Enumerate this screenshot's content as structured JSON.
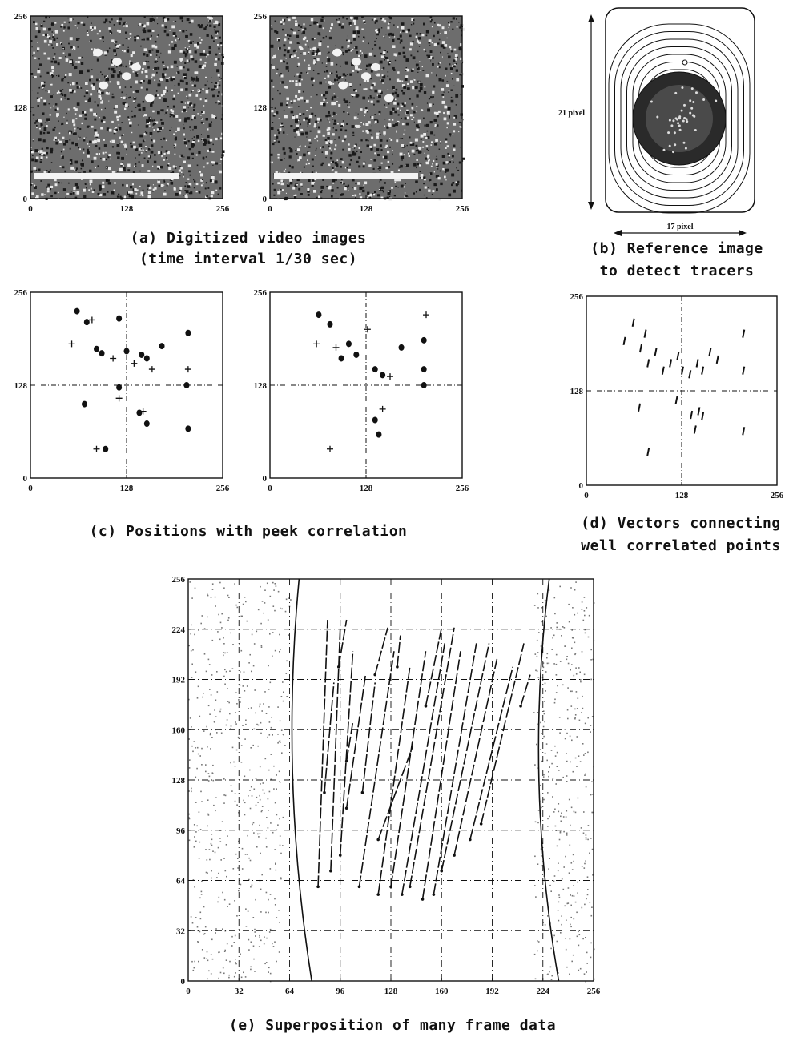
{
  "panel_a": {
    "caption_line1": "(a) Digitized video images",
    "caption_line2": "(time interval 1/30 sec)",
    "ticks": [
      "0",
      "128",
      "256"
    ]
  },
  "panel_b": {
    "caption_line1": "(b) Reference image",
    "caption_line2": "to detect tracers",
    "height_label": "21 pixel",
    "width_label": "17 pixel"
  },
  "panel_c": {
    "caption": "(c) Positions with peek correlation",
    "ticks": [
      "0",
      "128",
      "256"
    ]
  },
  "panel_d": {
    "caption_line1": "(d) Vectors connecting",
    "caption_line2": "well correlated points",
    "ticks": [
      "0",
      "128",
      "256"
    ]
  },
  "panel_e": {
    "caption": "(e) Superposition of many frame data",
    "x_ticks": [
      "0",
      "32",
      "64",
      "96",
      "128",
      "160",
      "192",
      "224",
      "256"
    ],
    "y_ticks": [
      "0",
      "32",
      "64",
      "96",
      "128",
      "160",
      "192",
      "224",
      "256"
    ]
  },
  "chart_data": [
    {
      "type": "scatter",
      "name_shown": "",
      "xlim": [
        0,
        256
      ],
      "ylim": [
        0,
        256
      ],
      "points_frame1": [
        [
          55,
          185
        ],
        [
          62,
          230
        ],
        [
          75,
          215
        ],
        [
          82,
          218
        ],
        [
          88,
          178
        ],
        [
          95,
          172
        ],
        [
          110,
          165
        ],
        [
          118,
          220
        ],
        [
          128,
          175
        ],
        [
          138,
          158
        ],
        [
          148,
          170
        ],
        [
          155,
          165
        ],
        [
          162,
          150
        ],
        [
          175,
          182
        ],
        [
          210,
          200
        ],
        [
          210,
          150
        ],
        [
          208,
          128
        ],
        [
          210,
          68
        ],
        [
          150,
          92
        ],
        [
          155,
          75
        ],
        [
          145,
          90
        ],
        [
          118,
          110
        ],
        [
          72,
          102
        ],
        [
          118,
          125
        ],
        [
          88,
          40
        ],
        [
          100,
          40
        ]
      ],
      "points_frame2": [
        [
          62,
          185
        ],
        [
          65,
          225
        ],
        [
          80,
          212
        ],
        [
          88,
          180
        ],
        [
          95,
          165
        ],
        [
          115,
          170
        ],
        [
          130,
          205
        ],
        [
          140,
          150
        ],
        [
          150,
          142
        ],
        [
          160,
          140
        ],
        [
          175,
          180
        ],
        [
          205,
          190
        ],
        [
          208,
          225
        ],
        [
          205,
          150
        ],
        [
          205,
          128
        ],
        [
          150,
          95
        ],
        [
          145,
          60
        ],
        [
          140,
          80
        ],
        [
          80,
          40
        ],
        [
          105,
          185
        ]
      ]
    },
    {
      "type": "vectors",
      "xlim": [
        0,
        256
      ],
      "ylim": [
        0,
        256
      ]
    },
    {
      "type": "vectors",
      "xlim": [
        0,
        256
      ],
      "ylim": [
        0,
        256
      ],
      "x_ticks": [
        0,
        32,
        64,
        96,
        128,
        160,
        192,
        224,
        256
      ],
      "y_ticks": [
        0,
        32,
        64,
        96,
        128,
        160,
        192,
        224,
        256
      ]
    }
  ]
}
